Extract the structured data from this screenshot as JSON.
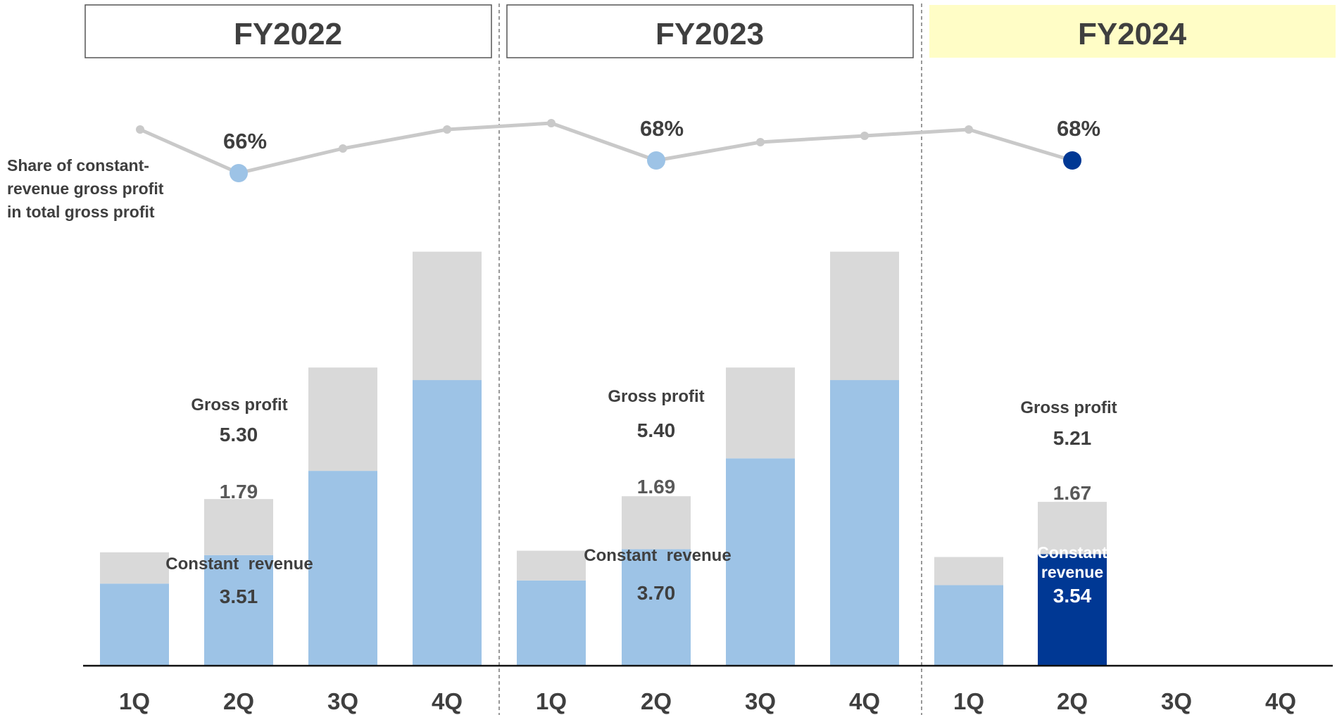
{
  "chart_data": {
    "type": "bar",
    "stacked": true,
    "categories": [
      "1Q",
      "2Q",
      "3Q",
      "4Q",
      "1Q",
      "2Q",
      "3Q",
      "4Q",
      "1Q",
      "2Q",
      "3Q",
      "4Q"
    ],
    "fiscal_years": [
      {
        "label": "FY2022",
        "highlight": false
      },
      {
        "label": "FY2023",
        "highlight": false
      },
      {
        "label": "FY2024",
        "highlight": true
      }
    ],
    "series": [
      {
        "name": "Constant revenue",
        "values": [
          2.6,
          3.51,
          6.2,
          9.1,
          2.7,
          3.7,
          6.6,
          9.1,
          2.55,
          3.54,
          null,
          null
        ]
      },
      {
        "values": [
          1.0,
          1.79,
          3.3,
          4.1,
          0.95,
          1.69,
          2.9,
          4.1,
          0.9,
          1.67,
          null,
          null
        ]
      }
    ],
    "share_line": {
      "label": "Share of constant-revenue gross profit in total gross profit",
      "values": [
        69,
        66,
        67,
        68,
        68,
        68,
        67,
        68,
        68,
        68,
        null,
        null
      ]
    },
    "annotations": {
      "gross_profit_label": "Gross profit",
      "constant_revenue_label": "Constant  revenue",
      "constant_revenue_short": "Constant",
      "revenue_word": "revenue",
      "fy2022": {
        "share": "66%",
        "gross_profit": "5.30",
        "gp_segment": "1.79",
        "constant": "3.51"
      },
      "fy2023": {
        "share": "68%",
        "gross_profit": "5.40",
        "gp_segment": "1.69",
        "constant": "3.70"
      },
      "fy2024": {
        "share": "68%",
        "gross_profit": "5.21",
        "gp_segment": "1.67",
        "constant": "3.54"
      }
    },
    "colors": {
      "constant_revenue": "#9DC3E6",
      "gross_profit_rest": "#D9D9D9",
      "highlight_bar": "#003894",
      "line": "#C9C9C9",
      "text": "#3F3F3F",
      "fy2024_header_bg": "#FFFDC6"
    }
  }
}
